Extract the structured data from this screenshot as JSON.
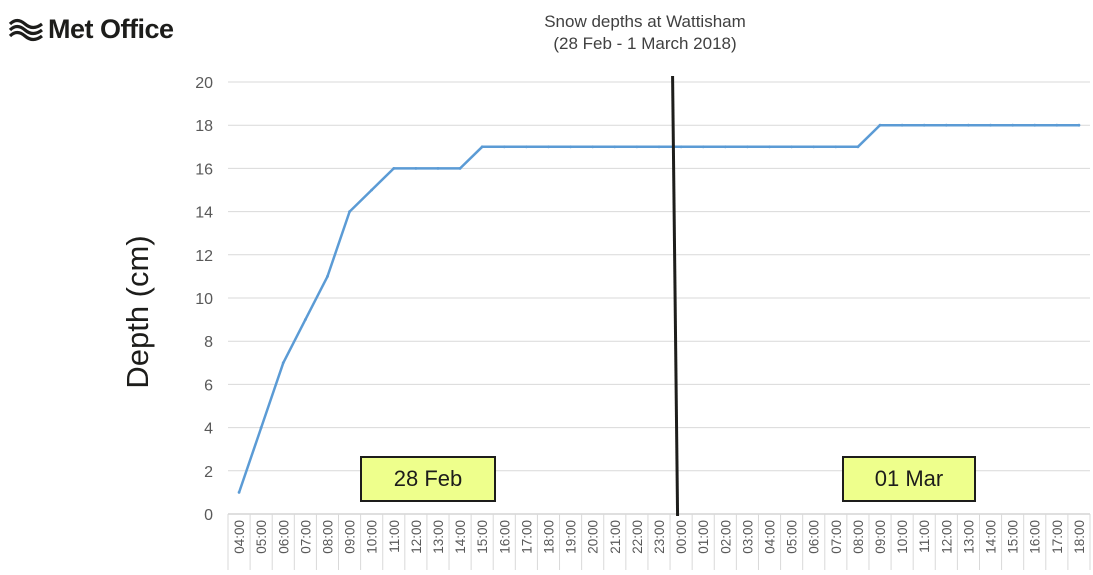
{
  "brand": {
    "name": "Met Office",
    "icon": "met-office-wave-icon"
  },
  "chart_data": {
    "type": "line",
    "title": "Snow depths at Wattisham",
    "subtitle": "(28 Feb - 1 March 2018)",
    "xlabel": "",
    "ylabel": "Depth (cm)",
    "ylim": [
      0,
      20
    ],
    "yticks": [
      0,
      2,
      4,
      6,
      8,
      10,
      12,
      14,
      16,
      18,
      20
    ],
    "grid": "horizontal",
    "x": [
      "04:00",
      "05:00",
      "06:00",
      "07:00",
      "08:00",
      "09:00",
      "10:00",
      "11:00",
      "12:00",
      "13:00",
      "14:00",
      "15:00",
      "16:00",
      "17:00",
      "18:00",
      "19:00",
      "20:00",
      "21:00",
      "22:00",
      "23:00",
      "00:00",
      "01:00",
      "02:00",
      "03:00",
      "04:00",
      "05:00",
      "06:00",
      "07:00",
      "08:00",
      "09:00",
      "10:00",
      "11:00",
      "12:00",
      "13:00",
      "14:00",
      "15:00",
      "16:00",
      "17:00",
      "18:00"
    ],
    "series": [
      {
        "values": [
          1,
          4,
          7,
          9,
          11,
          14,
          15,
          16,
          16,
          16,
          16,
          17,
          17,
          17,
          17,
          17,
          17,
          17,
          17,
          17,
          17,
          17,
          17,
          17,
          17,
          17,
          17,
          17,
          17,
          18,
          18,
          18,
          18,
          18,
          18,
          18,
          18,
          18,
          18
        ]
      }
    ],
    "colors": {
      "line": "#5b9bd5",
      "grid": "#d9d9d9",
      "divider": "#1d1d1b",
      "annotation_fill": "#eeff8c"
    },
    "divider_at": "00:00",
    "annotations": [
      {
        "text": "28 Feb"
      },
      {
        "text": "01 Mar"
      }
    ]
  }
}
